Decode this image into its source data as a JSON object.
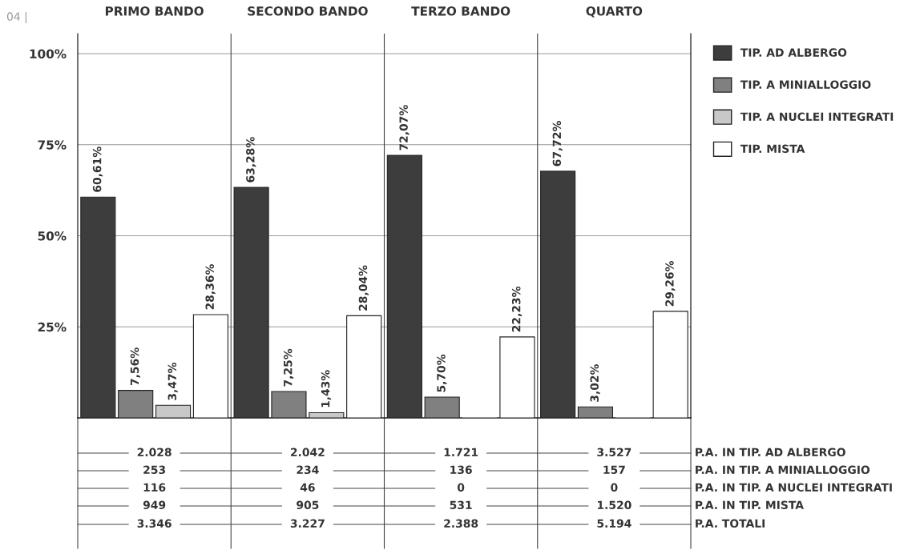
{
  "chart_data": {
    "type": "bar",
    "categories": [
      "PRIMO BANDO",
      "SECONDO BANDO",
      "TERZO BANDO",
      "QUARTO"
    ],
    "series": [
      {
        "name": "TIP. AD ALBERGO",
        "color": "#3d3d3d",
        "values": [
          60.61,
          63.28,
          72.07,
          67.72
        ],
        "value_labels": [
          "60,61%",
          "63,28%",
          "72,07%",
          "67,72%"
        ]
      },
      {
        "name": "TIP. A MINIALLOGGIO",
        "color": "#808080",
        "values": [
          7.56,
          7.25,
          5.7,
          3.02
        ],
        "value_labels": [
          "7,56%",
          "7,25%",
          "5,70%",
          "3,02%"
        ]
      },
      {
        "name": "TIP. A NUCLEI INTEGRATI",
        "color": "#c8c8c8",
        "values": [
          3.47,
          1.43,
          0,
          0
        ],
        "value_labels": [
          "3,47%",
          "1,43%",
          null,
          null
        ]
      },
      {
        "name": "TIP. MISTA",
        "color": "#ffffff",
        "values": [
          28.36,
          28.04,
          22.23,
          29.26
        ],
        "value_labels": [
          "28,36%",
          "28,04%",
          "22,23%",
          "29,26%"
        ]
      }
    ],
    "ylim": [
      0,
      105.5
    ],
    "yticks": [
      {
        "value": 25,
        "label": "25%"
      },
      {
        "value": 50,
        "label": "50%"
      },
      {
        "value": 75,
        "label": "75%"
      },
      {
        "value": 100,
        "label": "100%"
      }
    ],
    "grid": "y",
    "legend": "top right",
    "annotations": [
      "04 |",
      "2.028",
      "2.042",
      "1.721",
      "3.527",
      "P.A. IN TIP. AD ALBERGO",
      "253",
      "234",
      "136",
      "157",
      "P.A. IN TIP. A MINIALLOGGIO",
      "116",
      "46",
      "0",
      "0",
      "P.A. IN TIP. A NUCLEI INTEGRATI",
      "949",
      "905",
      "531",
      "1.520",
      "P.A. IN TIP. MISTA",
      "3.346",
      "3.227",
      "2.388",
      "5.194",
      "P.A. TOTALI"
    ]
  }
}
